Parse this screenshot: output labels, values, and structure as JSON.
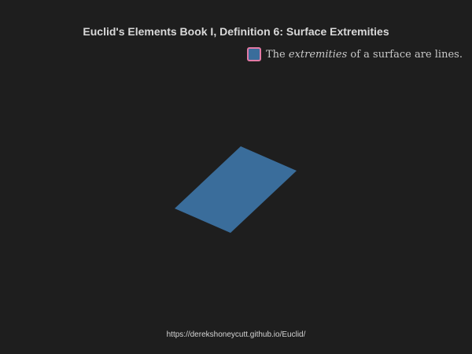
{
  "title": "Euclid's Elements Book I, Definition 6: Surface Extremities",
  "legend": {
    "prefix": "The ",
    "emphasis": "extremities",
    "suffix": " of a surface are lines.",
    "swatch_fill": "#3a6d9b",
    "swatch_border": "#e27aa5"
  },
  "surface": {
    "fill": "#3a6d9b",
    "shape": "parallelogram"
  },
  "footer": {
    "url": "https://derekshoneycutt.github.io/Euclid/"
  },
  "colors": {
    "background": "#1e1e1e",
    "title": "#d9d9d9",
    "text": "#c9c9c9"
  }
}
